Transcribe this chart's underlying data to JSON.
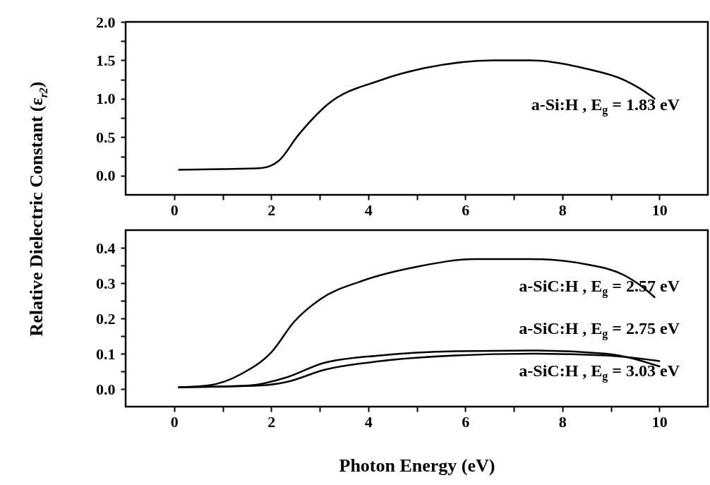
{
  "chart_data": [
    {
      "type": "line",
      "ylabel": "Relative Dielectric Constant (ε$_{r2}$)",
      "xlim": [
        -1,
        11
      ],
      "xticks": [
        0,
        {
          "value": 1,
          "label": null
        },
        2,
        {
          "value": 3,
          "label": null
        },
        4,
        {
          "value": 5,
          "label": null
        },
        6,
        {
          "value": 7,
          "label": null
        },
        8,
        {
          "value": 9,
          "label": null
        },
        10
      ],
      "ylim": [
        -0.25,
        2.0
      ],
      "yticks": [
        {
          "value": 0,
          "label": "0.0"
        },
        {
          "value": 0.25,
          "label": null
        },
        {
          "value": 0.5,
          "label": "0.5"
        },
        {
          "value": 0.75,
          "label": null
        },
        {
          "value": 1,
          "label": "1.0"
        },
        {
          "value": 1.25,
          "label": null
        },
        {
          "value": 1.5,
          "label": "1.5"
        },
        {
          "value": 1.75,
          "label": null
        },
        {
          "value": 2,
          "label": "2.0"
        }
      ],
      "grid": false,
      "legend": false,
      "series": [
        {
          "name": "a-Si:H , E$_{g}$ = 1.83 eV",
          "color": "#000000",
          "x": [
            0.1,
            1.0,
            1.8,
            2.16,
            2.55,
            3.17,
            4.25,
            5.17,
            6.58,
            7.35,
            8.5,
            9.29,
            9.83,
            9.9
          ],
          "values": [
            0.075,
            0.085,
            0.1,
            0.195,
            0.52,
            0.93,
            1.24,
            1.4,
            1.5,
            1.5,
            1.39,
            1.24,
            1.035,
            1.0
          ]
        }
      ]
    },
    {
      "type": "line",
      "xlabel": "Photon Energy (eV)",
      "xlim": [
        -1,
        11
      ],
      "xticks": [
        0,
        {
          "value": 1,
          "label": null
        },
        2,
        {
          "value": 3,
          "label": null
        },
        4,
        {
          "value": 5,
          "label": null
        },
        6,
        {
          "value": 7,
          "label": null
        },
        8,
        {
          "value": 9,
          "label": null
        },
        10
      ],
      "ylim": [
        -0.05,
        0.45
      ],
      "yticks": [
        {
          "value": 0,
          "label": "0.0"
        },
        {
          "value": 0.05,
          "label": null
        },
        {
          "value": 0.1,
          "label": "0.1"
        },
        {
          "value": 0.15,
          "label": null
        },
        {
          "value": 0.2,
          "label": "0.2"
        },
        {
          "value": 0.25,
          "label": null
        },
        {
          "value": 0.3,
          "label": "0.3"
        },
        {
          "value": 0.35,
          "label": null
        },
        {
          "value": 0.4,
          "label": "0.4"
        }
      ],
      "grid": false,
      "legend": false,
      "series": [
        {
          "name": "a-SiC:H , E$_{g}$ = 2.57 eV",
          "color": "#000000",
          "x": [
            0.1,
            0.7,
            1.39,
            2.01,
            2.47,
            3.02,
            3.87,
            5.03,
            6.19,
            7.35,
            8.5,
            9.28,
            9.82,
            9.9
          ],
          "values": [
            0.005,
            0.01,
            0.043,
            0.105,
            0.19,
            0.255,
            0.306,
            0.347,
            0.368,
            0.368,
            0.353,
            0.322,
            0.27,
            0.26
          ]
        },
        {
          "name": "a-SiC:H , E$_{g}$ = 2.75 eV",
          "color": "#000000",
          "x": [
            0.1,
            1.55,
            2.32,
            3.09,
            4.25,
            5.8,
            7.35,
            8.9,
            10.0
          ],
          "values": [
            0.005,
            0.01,
            0.033,
            0.074,
            0.095,
            0.107,
            0.109,
            0.1,
            0.064
          ]
        },
        {
          "name": "a-SiC:H , E$_{g}$ = 3.03 eV",
          "color": "#000000",
          "x": [
            0.1,
            1.78,
            2.32,
            3.09,
            4.25,
            5.8,
            7.35,
            8.9,
            10.0
          ],
          "values": [
            0.005,
            0.01,
            0.02,
            0.054,
            0.079,
            0.095,
            0.1,
            0.095,
            0.079
          ]
        }
      ]
    }
  ]
}
